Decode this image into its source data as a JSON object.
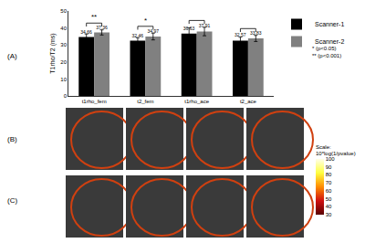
{
  "chart_data": {
    "type": "bar",
    "y_label": "T1rho/T2 (ms)",
    "categories": [
      "t1rho_fem",
      "t2_fem",
      "t1rho_ace",
      "t2_ace"
    ],
    "series": [
      {
        "name": "Scanner-1",
        "color": "#000000",
        "values": [
          34.66,
          32.46,
          36.63,
          32.57
        ],
        "errors": [
          1.8,
          1.8,
          3.5,
          2.0
        ]
      },
      {
        "name": "Scanner-2",
        "color": "#808080",
        "values": [
          37.36,
          34.97,
          37.91,
          33.83
        ],
        "errors": [
          1.5,
          2.0,
          2.5,
          1.8
        ]
      }
    ],
    "ylim": [
      0,
      50
    ],
    "yticks": [
      0,
      10,
      20,
      30,
      40,
      50
    ],
    "data_labels": true,
    "legend": "upper right",
    "annotations": [
      {
        "category": "t1rho_fem",
        "text": "**"
      },
      {
        "category": "t2_fem",
        "text": "*"
      },
      {
        "category": "t1rho_ace"
      },
      {
        "category": "t2_ace"
      }
    ],
    "footnotes": [
      "* (p<0.05)",
      "** (p<0.001)"
    ]
  },
  "panels": [
    {
      "label": "(A)"
    },
    {
      "label": "(B)",
      "images": 4
    },
    {
      "label": "(C)",
      "images": 4
    }
  ],
  "colorbar": {
    "title": [
      "Scale:",
      "10*log(1/pvalue)"
    ],
    "range": [
      30,
      100
    ],
    "ticks": [
      30,
      40,
      50,
      60,
      70,
      80,
      90,
      100
    ],
    "colors": [
      "#5a0000",
      "#d01010",
      "#ff8c00",
      "#ffff40",
      "#ffffe8"
    ]
  }
}
